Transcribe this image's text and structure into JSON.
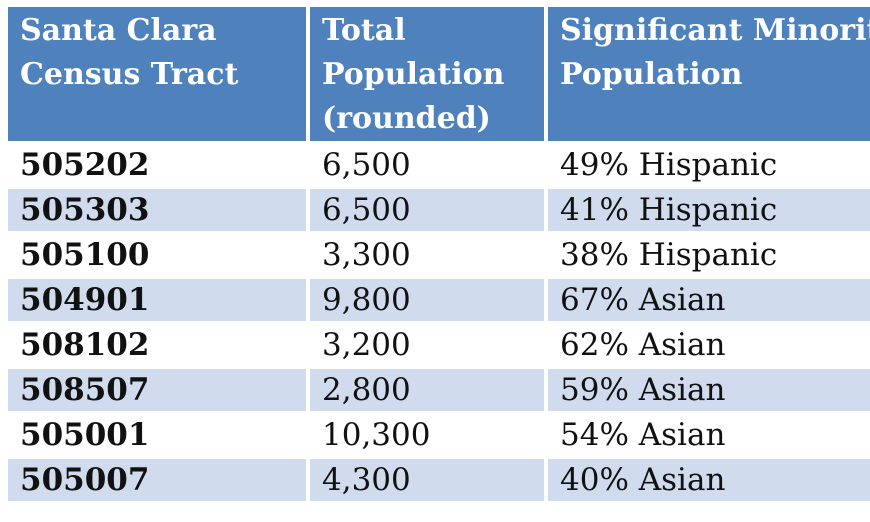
{
  "table": {
    "headers": [
      [
        "Santa Clara",
        "Census Tract"
      ],
      [
        "Total",
        "Population",
        "(rounded)"
      ],
      [
        "Significant Minority",
        "Population"
      ]
    ],
    "rows": [
      {
        "tract": "505202",
        "population": "6,500",
        "minority": "49% Hispanic"
      },
      {
        "tract": "505303",
        "population": "6,500",
        "minority": "41% Hispanic"
      },
      {
        "tract": "505100",
        "population": "3,300",
        "minority": "38% Hispanic"
      },
      {
        "tract": "504901",
        "population": "9,800",
        "minority": "67% Asian"
      },
      {
        "tract": "508102",
        "population": "3,200",
        "minority": "62% Asian"
      },
      {
        "tract": "508507",
        "population": "2,800",
        "minority": "59% Asian"
      },
      {
        "tract": "505001",
        "population": "10,300",
        "minority": "54% Asian"
      },
      {
        "tract": "505007",
        "population": "4,300",
        "minority": "40% Asian"
      }
    ]
  },
  "colors": {
    "header_bg": "#4f81bd",
    "header_text": "#ffffff",
    "row_alt_bg": "#d0dcee",
    "row_bg": "#ffffff"
  }
}
